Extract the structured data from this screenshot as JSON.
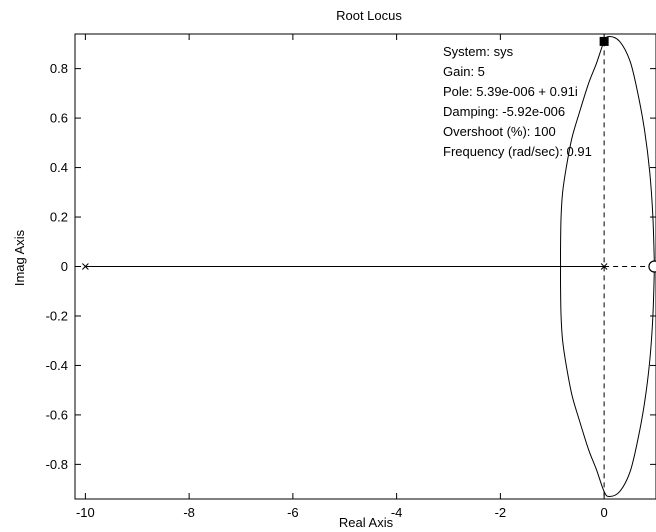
{
  "chart_data": {
    "type": "line",
    "title": "Root Locus",
    "xlabel": "Real Axis",
    "ylabel": "Imag Axis",
    "xlim": [
      -10.2,
      1.0
    ],
    "ylim": [
      -0.94,
      0.94
    ],
    "xticks": [
      -10,
      -8,
      -6,
      -4,
      -2,
      0
    ],
    "yticks": [
      -0.8,
      -0.6,
      -0.4,
      -0.2,
      0,
      0.2,
      0.4,
      0.6,
      0.8
    ],
    "xtick_labels": [
      "-10",
      "-8",
      "-6",
      "-4",
      "-2",
      "0"
    ],
    "ytick_labels": [
      "-0.8",
      "-0.6",
      "-0.4",
      "-0.2",
      "0",
      "0.2",
      "0.4",
      "0.6",
      "0.8"
    ],
    "grid": false,
    "poles": [
      {
        "re": -10,
        "im": 0
      },
      {
        "re": 0,
        "im": 0
      }
    ],
    "zeros": [
      {
        "re": 0.97,
        "im": 0
      }
    ],
    "locus_branches": [
      {
        "name": "real-axis-segment",
        "points": [
          [
            -10,
            0
          ],
          [
            0,
            0
          ]
        ]
      },
      {
        "name": "upper-branch",
        "points": [
          [
            -0.84,
            0.0
          ],
          [
            -0.84,
            0.08
          ],
          [
            -0.83,
            0.2
          ],
          [
            -0.8,
            0.3
          ],
          [
            -0.73,
            0.4
          ],
          [
            -0.62,
            0.52
          ],
          [
            -0.48,
            0.62
          ],
          [
            -0.3,
            0.74
          ],
          [
            -0.15,
            0.82
          ],
          [
            0.0,
            0.91
          ],
          [
            0.1,
            0.93
          ],
          [
            0.3,
            0.91
          ],
          [
            0.5,
            0.83
          ],
          [
            0.65,
            0.7
          ],
          [
            0.78,
            0.55
          ],
          [
            0.88,
            0.38
          ],
          [
            0.94,
            0.2
          ],
          [
            0.97,
            0.0
          ]
        ]
      },
      {
        "name": "lower-branch",
        "points": [
          [
            -0.84,
            0.0
          ],
          [
            -0.84,
            -0.08
          ],
          [
            -0.83,
            -0.2
          ],
          [
            -0.8,
            -0.3
          ],
          [
            -0.73,
            -0.4
          ],
          [
            -0.62,
            -0.52
          ],
          [
            -0.48,
            -0.62
          ],
          [
            -0.3,
            -0.74
          ],
          [
            -0.15,
            -0.82
          ],
          [
            0.0,
            -0.91
          ],
          [
            0.1,
            -0.93
          ],
          [
            0.3,
            -0.91
          ],
          [
            0.5,
            -0.83
          ],
          [
            0.65,
            -0.7
          ],
          [
            0.78,
            -0.55
          ],
          [
            0.88,
            -0.38
          ],
          [
            0.94,
            -0.2
          ],
          [
            0.97,
            0.0
          ]
        ]
      }
    ],
    "selected_point": {
      "re": 0.0,
      "im": 0.91
    },
    "datatip": {
      "system": "System: sys",
      "gain": "Gain: 5",
      "pole": "Pole: 5.39e-006 + 0.91i",
      "damping": "Damping: -5.92e-006",
      "overshoot": "Overshoot (%): 100",
      "frequency": "Frequency (rad/sec): 0.91"
    }
  }
}
